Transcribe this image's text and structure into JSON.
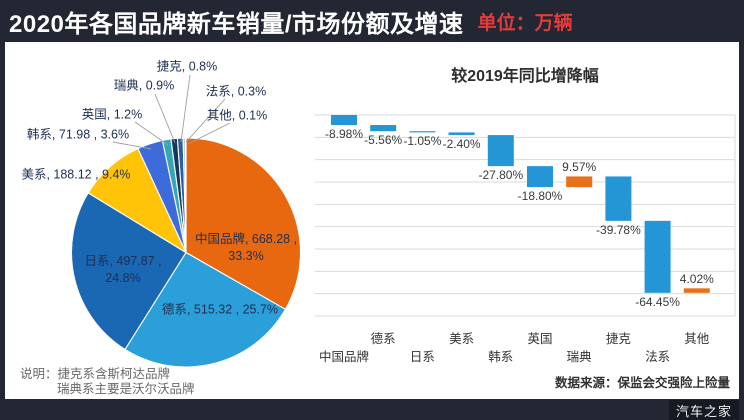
{
  "header": {
    "title": "2020年各国品牌新车销量/市场份额及增速",
    "unit_label": "单位：万辆",
    "unit_color": "#E23B3B"
  },
  "footer": {
    "note_line1": "说明：捷克系含斯柯达品牌",
    "note_line2": "瑞典系主要是沃尔沃品牌",
    "source": "数据来源：保监会交强险上险量",
    "watermark": "汽车之家"
  },
  "chart_data": [
    {
      "type": "pie",
      "title": "2020年各国品牌新车销量/市场份额",
      "unit": "万辆",
      "legend_position": "none",
      "items": [
        {
          "name": "中国品牌",
          "sales": 668.28,
          "share_pct": 33.3,
          "label_lines": [
            "中国品牌, 668.28 ,",
            "33.3%"
          ],
          "color": "#E8680F"
        },
        {
          "name": "德系",
          "sales": 515.32,
          "share_pct": 25.7,
          "label_lines": [
            "德系, 515.32 , 25.7%"
          ],
          "color": "#2B9FD9"
        },
        {
          "name": "日系",
          "sales": 497.87,
          "share_pct": 24.8,
          "label_lines": [
            "日系, 497.87 ,",
            "24.8%"
          ],
          "color": "#1A67B4"
        },
        {
          "name": "美系",
          "sales": 188.12,
          "share_pct": 9.4,
          "label_lines": [
            "美系, 188.12 , 9.4%"
          ],
          "color": "#FFC408"
        },
        {
          "name": "韩系",
          "sales": 71.98,
          "share_pct": 3.6,
          "label_lines": [
            "韩系, 71.98 , 3.6%"
          ],
          "color": "#3E6BDC"
        },
        {
          "name": "英国",
          "share_pct": 1.2,
          "label_lines": [
            "英国, 1.2%"
          ],
          "color": "#33A7B5"
        },
        {
          "name": "瑞典",
          "share_pct": 0.9,
          "label_lines": [
            "瑞典, 0.9%"
          ],
          "color": "#17375E"
        },
        {
          "name": "捷克",
          "share_pct": 0.8,
          "label_lines": [
            "捷克, 0.8%"
          ],
          "color": "#2D5E9C"
        },
        {
          "name": "法系",
          "share_pct": 0.3,
          "label_lines": [
            "法系, 0.3%"
          ],
          "color": "#8FB8E0"
        },
        {
          "name": "其他",
          "share_pct": 0.1,
          "label_lines": [
            "其他, 0.1%"
          ],
          "color": "#9AA0A6"
        }
      ]
    },
    {
      "type": "bar",
      "subtype": "waterfall",
      "title": "较2019年同比增降幅",
      "categories": [
        "中国品牌",
        "德系",
        "日系",
        "美系",
        "韩系",
        "英国",
        "瑞典",
        "捷克",
        "法系",
        "其他"
      ],
      "values": [
        -8.98,
        -5.56,
        -1.05,
        -2.4,
        -27.8,
        -18.8,
        9.57,
        -39.78,
        -64.45,
        4.02
      ],
      "labels": [
        "-8.98%",
        "-5.56%",
        "-1.05%",
        "-2.40%",
        "-27.80%",
        "-18.80%",
        "9.57%",
        "-39.78%",
        "-64.45%",
        "4.02%"
      ],
      "colors": {
        "decrease": "#2596D5",
        "increase": "#E8701A",
        "gridline": "#D9D9D9"
      },
      "ylim": [
        -180,
        0
      ],
      "grid_step": 20,
      "grid": true,
      "legend_position": "none"
    }
  ]
}
